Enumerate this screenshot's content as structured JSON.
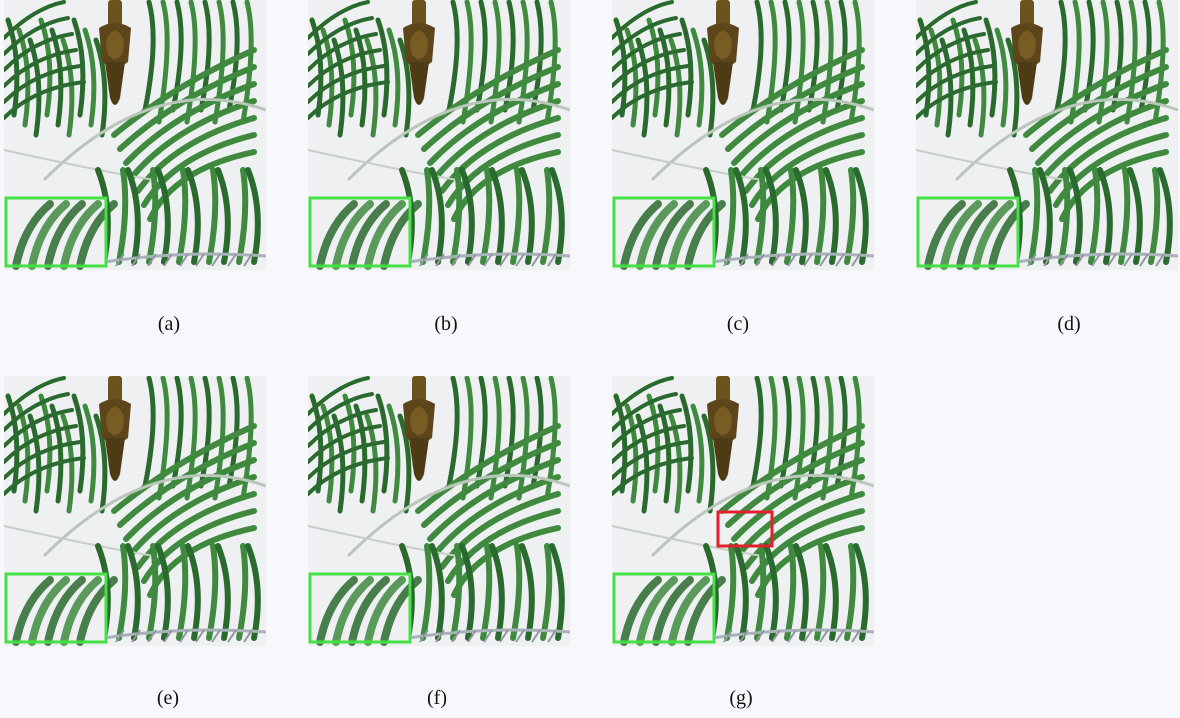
{
  "figure": {
    "panels": [
      {
        "label": "(a)",
        "has_red_box": false
      },
      {
        "label": "(b)",
        "has_red_box": false
      },
      {
        "label": "(c)",
        "has_red_box": false
      },
      {
        "label": "(d)",
        "has_red_box": false
      },
      {
        "label": "(e)",
        "has_red_box": false
      },
      {
        "label": "(f)",
        "has_red_box": false
      },
      {
        "label": "(g)",
        "has_red_box": true
      }
    ],
    "colors": {
      "background": "#f7f8fb",
      "leaf": "#3f8a3f",
      "leaf_dark": "#2a6a2e",
      "ornament": "#6b5320",
      "zoom_box": "#44e044",
      "red_box": "#e0202a"
    }
  }
}
